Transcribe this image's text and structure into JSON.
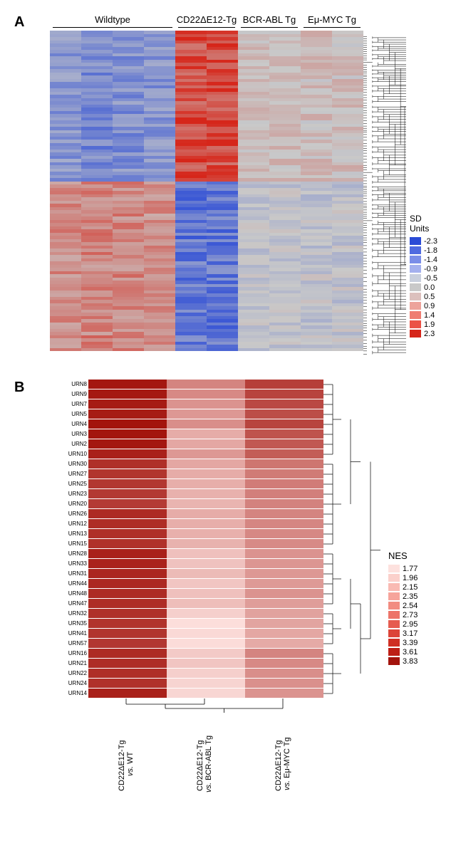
{
  "panelA": {
    "label": "A",
    "headers": [
      {
        "text": "Wildtype",
        "cols": 4
      },
      {
        "text": "CD22ΔE12-Tg",
        "cols": 2
      },
      {
        "text": "BCR-ABL Tg",
        "cols": 2
      },
      {
        "text": "Eμ-MYC Tg",
        "cols": 2
      }
    ],
    "legend_title": "SD Units",
    "legend": [
      {
        "v": "-2.3",
        "c": "#2b4bd6"
      },
      {
        "v": "-1.8",
        "c": "#4f6ae0"
      },
      {
        "v": "-1.4",
        "c": "#7a8de8"
      },
      {
        "v": "-0.9",
        "c": "#a4b0ee"
      },
      {
        "v": "-0.5",
        "c": "#c9cfdd"
      },
      {
        "v": "0.0",
        "c": "#c9c9c9"
      },
      {
        "v": "0.5",
        "c": "#dcc0bd"
      },
      {
        "v": "0.9",
        "c": "#eda39b"
      },
      {
        "v": "1.4",
        "c": "#ef7d72"
      },
      {
        "v": "1.9",
        "c": "#eb5246"
      },
      {
        "v": "2.3",
        "c": "#d6261a"
      }
    ],
    "n_rows": 100,
    "n_cols": 10,
    "col_profiles": [
      {
        "bias": -0.2,
        "spread": 1.0
      },
      {
        "bias": -0.5,
        "spread": 1.2
      },
      {
        "bias": -0.3,
        "spread": 1.1
      },
      {
        "bias": -0.4,
        "spread": 1.0
      },
      {
        "bias": 0.9,
        "spread": 1.4
      },
      {
        "bias": 0.9,
        "spread": 1.4
      },
      {
        "bias": 0.0,
        "spread": 0.6
      },
      {
        "bias": 0.05,
        "spread": 0.6
      },
      {
        "bias": -0.05,
        "spread": 0.7
      },
      {
        "bias": 0.0,
        "spread": 0.7
      }
    ],
    "row_split": 0.47,
    "colorscale": {
      "min": -2.3,
      "max": 2.3,
      "low": "#2b4bd6",
      "mid": "#c9c9c9",
      "high": "#d6261a"
    }
  },
  "panelB": {
    "label": "B",
    "rows": [
      "URN8",
      "URN9",
      "URN7",
      "URN5",
      "URN4",
      "URN3",
      "URN2",
      "URN10",
      "URN30",
      "URN27",
      "URN25",
      "URN23",
      "URN20",
      "URN26",
      "URN12",
      "URN13",
      "URN15",
      "URN28",
      "URN33",
      "URN31",
      "URN44",
      "URN48",
      "URN47",
      "URN32",
      "URN35",
      "URN41",
      "URN57",
      "URN16",
      "URN21",
      "URN22",
      "URN24",
      "URN14"
    ],
    "cols": [
      "CD22ΔE12-Tg\nvs. WT",
      "CD22ΔE12-Tg\nvs. BCR-ABL Tg",
      "CD22ΔE12-Tg\nvs. Eμ-MYC Tg"
    ],
    "data": [
      [
        3.8,
        2.7,
        3.4
      ],
      [
        3.78,
        2.65,
        3.35
      ],
      [
        3.76,
        2.55,
        3.3
      ],
      [
        3.75,
        2.5,
        3.25
      ],
      [
        3.83,
        2.6,
        3.35
      ],
      [
        3.82,
        2.3,
        3.2
      ],
      [
        3.8,
        2.35,
        3.15
      ],
      [
        3.7,
        2.5,
        3.1
      ],
      [
        3.55,
        2.35,
        2.85
      ],
      [
        3.5,
        2.3,
        2.8
      ],
      [
        3.48,
        2.28,
        2.78
      ],
      [
        3.46,
        2.25,
        2.75
      ],
      [
        3.44,
        2.22,
        2.72
      ],
      [
        3.6,
        2.3,
        2.7
      ],
      [
        3.58,
        2.28,
        2.68
      ],
      [
        3.56,
        2.26,
        2.66
      ],
      [
        3.54,
        2.24,
        2.64
      ],
      [
        3.7,
        2.1,
        2.55
      ],
      [
        3.68,
        2.08,
        2.52
      ],
      [
        3.65,
        2.15,
        2.5
      ],
      [
        3.63,
        2.05,
        2.48
      ],
      [
        3.6,
        2.1,
        2.55
      ],
      [
        3.58,
        2.12,
        2.45
      ],
      [
        3.55,
        1.95,
        2.4
      ],
      [
        3.52,
        1.8,
        2.38
      ],
      [
        3.5,
        1.85,
        2.35
      ],
      [
        3.48,
        1.82,
        2.32
      ],
      [
        3.6,
        2.0,
        2.7
      ],
      [
        3.58,
        2.05,
        2.65
      ],
      [
        3.56,
        1.95,
        2.6
      ],
      [
        3.54,
        1.9,
        2.58
      ],
      [
        3.7,
        1.88,
        2.55
      ]
    ],
    "legend_title": "NES",
    "legend": [
      {
        "v": "1.77",
        "c": "#fde1de"
      },
      {
        "v": "1.96",
        "c": "#fbd0cb"
      },
      {
        "v": "2.15",
        "c": "#f9bab3"
      },
      {
        "v": "2.35",
        "c": "#f6a49b"
      },
      {
        "v": "2.54",
        "c": "#f28c81"
      },
      {
        "v": "2.73",
        "c": "#ed7469"
      },
      {
        "v": "2.95",
        "c": "#e65c50"
      },
      {
        "v": "3.17",
        "c": "#dc4438"
      },
      {
        "v": "3.39",
        "c": "#cf2f24"
      },
      {
        "v": "3.61",
        "c": "#bd1f16"
      },
      {
        "v": "3.83",
        "c": "#a3140d"
      }
    ],
    "colorscale": {
      "min": 1.77,
      "max": 3.83,
      "low": "#fde1de",
      "high": "#a3140d"
    }
  }
}
